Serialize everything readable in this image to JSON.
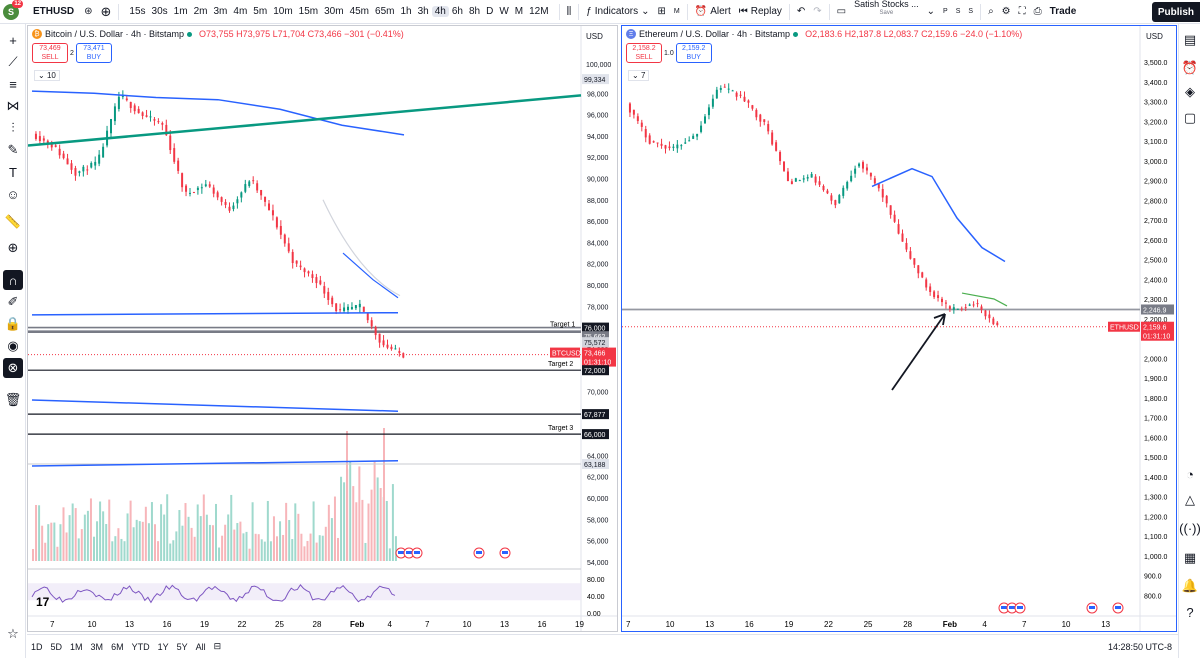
{
  "topbar": {
    "avatar_letter": "S",
    "notifications": "12",
    "symbol": "ETHUSD",
    "timeframes": [
      "15s",
      "30s",
      "1m",
      "2m",
      "3m",
      "4m",
      "5m",
      "10m",
      "15m",
      "30m",
      "45m",
      "65m",
      "1h",
      "3h",
      "4h",
      "6h",
      "8h",
      "D",
      "W",
      "M",
      "12M"
    ],
    "active_timeframe": "4h",
    "indicators_label": "Indicators",
    "layout_letter": "M",
    "alert_label": "Alert",
    "replay_label": "Replay",
    "layout_name": "Satish Stocks ...",
    "layout_status": "Save",
    "mini_letters": [
      "P",
      "S",
      "S"
    ],
    "trade_label": "Trade",
    "publish_label": "Publish"
  },
  "btc": {
    "title": "Bitcoin / U.S. Dollar · 4h · Bitstamp",
    "ohlc": "O73,755 H73,975 L71,704 C73,466 −301 (−0.41%)",
    "sell_price": "73,469",
    "sell_label": "SELL",
    "spread": "2",
    "buy_price": "73,471",
    "buy_label": "BUY",
    "indicator_count": "10",
    "currency": "USD",
    "price_scale": [
      "100,000",
      "98,000",
      "96,000",
      "94,000",
      "92,000",
      "90,000",
      "88,000",
      "86,000",
      "84,000",
      "82,000",
      "80,000",
      "78,000",
      "74,000",
      "72,000",
      "70,000",
      "68,000",
      "66,000",
      "64,000",
      "62,000",
      "60,000",
      "58,000",
      "56,000",
      "54,000"
    ],
    "rsi_scale": [
      "80.00",
      "40.00",
      "0.00"
    ],
    "badges": {
      "top": "99,334",
      "target1_label": "Target 1",
      "target1": "76,000",
      "b2": "75,662",
      "b3": "75,572",
      "symbol": "BTCUSD",
      "price": "73,466",
      "countdown": "01:31:10",
      "target2_label": "Target 2",
      "target2": "72,000",
      "b5": "67,877",
      "target3_label": "Target 3",
      "target3": "66,000",
      "b7": "63,188"
    },
    "x_labels": [
      "7",
      "10",
      "13",
      "16",
      "19",
      "22",
      "25",
      "28",
      "Feb",
      "4",
      "7",
      "10",
      "13",
      "16",
      "19"
    ]
  },
  "eth": {
    "title": "Ethereum / U.S. Dollar · 4h · Bitstamp",
    "ohlc": "O2,183.6 H2,187.8 L2,083.7 C2,159.6 −24.0 (−1.10%)",
    "sell_price": "2,158.2",
    "sell_label": "SELL",
    "spread": "1.0",
    "buy_price": "2,159.2",
    "buy_label": "BUY",
    "indicator_count": "7",
    "currency": "USD",
    "price_scale": [
      "3,500.0",
      "3,400.0",
      "3,300.0",
      "3,200.0",
      "3,100.0",
      "3,000.0",
      "2,900.0",
      "2,800.0",
      "2,700.0",
      "2,600.0",
      "2,500.0",
      "2,400.0",
      "2,300.0",
      "2,200.0",
      "2,000.0",
      "1,900.0",
      "1,800.0",
      "1,700.0",
      "1,600.0",
      "1,500.0",
      "1,400.0",
      "1,300.0",
      "1,200.0",
      "1,100.0",
      "1,000.0",
      "900.0",
      "800.0"
    ],
    "badges": {
      "level": "2,246.9",
      "symbol": "ETHUSD",
      "price": "2,159.6",
      "countdown": "01:31:10"
    },
    "x_labels": [
      "7",
      "10",
      "13",
      "16",
      "19",
      "22",
      "25",
      "28",
      "Feb",
      "4",
      "7",
      "10",
      "13"
    ]
  },
  "bottombar": {
    "ranges": [
      "1D",
      "5D",
      "1M",
      "3M",
      "6M",
      "YTD",
      "1Y",
      "5Y",
      "All"
    ],
    "clock": "14:28:50 UTC-8"
  },
  "colors": {
    "up": "#089981",
    "down": "#f23645",
    "ma": "#2962ff",
    "trendline": "#089981",
    "accent": "#2962ff"
  }
}
